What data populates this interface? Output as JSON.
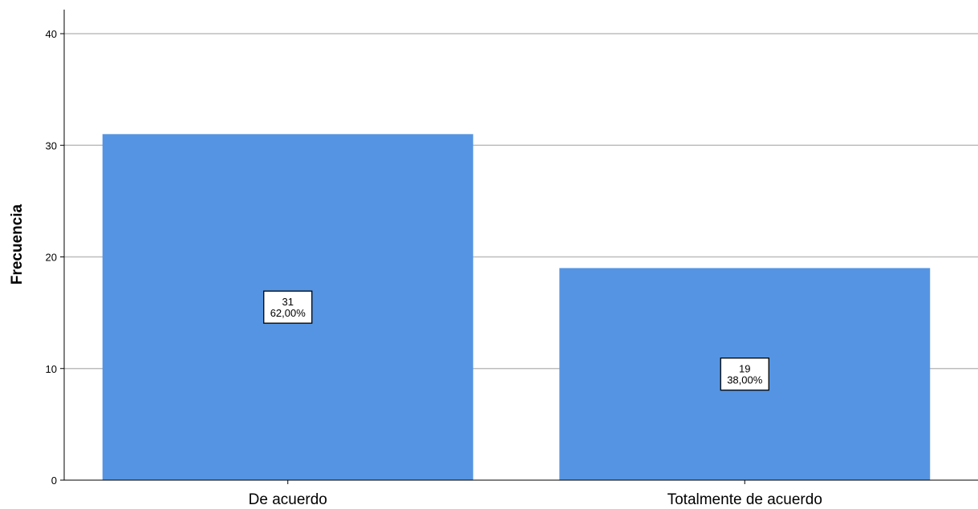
{
  "chart_data": {
    "type": "bar",
    "categories": [
      "De acuerdo",
      "Totalmente de acuerdo"
    ],
    "values": [
      31,
      19
    ],
    "data_labels": [
      {
        "count": "31",
        "percent": "62,00%"
      },
      {
        "count": "19",
        "percent": "38,00%"
      }
    ],
    "title": "",
    "xlabel": "",
    "ylabel": "Frecuencia",
    "ylim": [
      0,
      40
    ],
    "yticks": [
      "0",
      "10",
      "20",
      "30",
      "40"
    ],
    "grid": true,
    "bar_color": "#5594E2",
    "grid_color": "#BDBDBD"
  }
}
